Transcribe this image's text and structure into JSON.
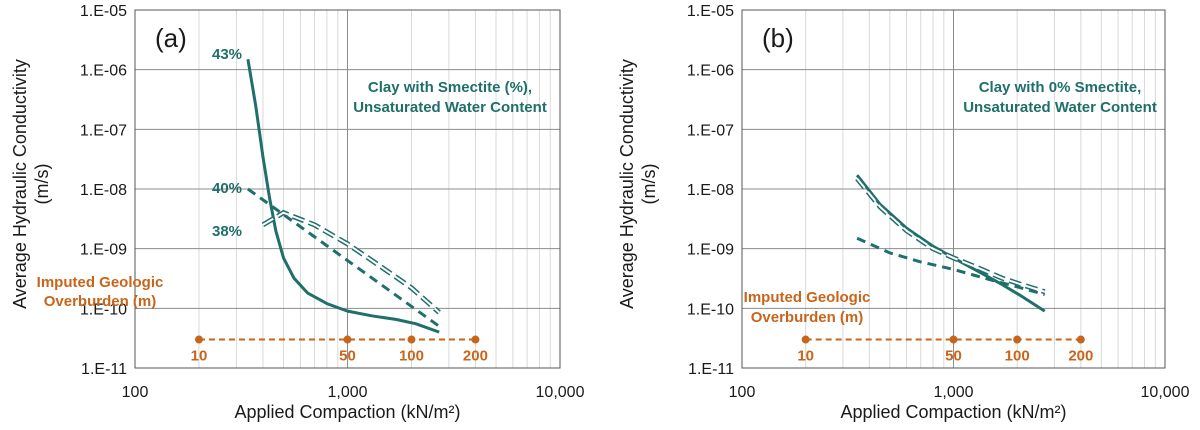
{
  "colors": {
    "teal": "#1f6f6b",
    "orange": "#c8651b",
    "grid_major": "#8c8c8c",
    "grid_minor": "#d9d9d9"
  },
  "chart_data": [
    {
      "type": "line",
      "panel_label": "(a)",
      "xlabel": "Applied Compaction (kN/m²)",
      "ylabel_line1": "Average Hydraulic Conductivity",
      "ylabel_line2": "(m/s)",
      "xscale": "log",
      "yscale": "log",
      "xlim": [
        100,
        10000
      ],
      "ylim": [
        1e-11,
        1e-05
      ],
      "x_ticks": [
        100,
        1000,
        10000
      ],
      "x_tick_labels": [
        "100",
        "1,000",
        "10,000"
      ],
      "y_ticks": [
        1e-11,
        1e-10,
        1e-09,
        1e-08,
        1e-07,
        1e-06,
        1e-05
      ],
      "y_tick_labels": [
        "1.E-11",
        "1.E-10",
        "1.E-09",
        "1.E-08",
        "1.E-07",
        "1.E-06",
        "1.E-05"
      ],
      "annotation_line1": "Clay with Smectite (%),",
      "annotation_line2": "Unsaturated Water Content",
      "series": [
        {
          "name": "43%",
          "style": "solid",
          "x": [
            340,
            370,
            400,
            430,
            460,
            500,
            560,
            650,
            800,
            1000,
            1300,
            1700,
            2100,
            2700
          ],
          "y": [
            1.5e-06,
            2.5e-07,
            3.5e-08,
            7e-09,
            2e-09,
            7e-10,
            3.2e-10,
            1.8e-10,
            1.2e-10,
            9e-11,
            7.5e-11,
            6.5e-11,
            5.5e-11,
            4e-11
          ]
        },
        {
          "name": "40%",
          "style": "dashed",
          "x": [
            340,
            2700
          ],
          "y": [
            1e-08,
            5e-11
          ]
        },
        {
          "name": "38%",
          "style": "double-dashed",
          "x": [
            400,
            500,
            700,
            1000,
            1500,
            2000,
            2700
          ],
          "y": [
            2.5e-09,
            4e-09,
            2.5e-09,
            1.2e-09,
            4.5e-10,
            2.2e-10,
            8.5e-11
          ]
        }
      ],
      "overburden": {
        "label_line1": "Imputed Geologic",
        "label_line2": "Overburden (m)",
        "y": 3e-11,
        "points": [
          {
            "label": "10",
            "x": 200
          },
          {
            "label": "50",
            "x": 1000
          },
          {
            "label": "100",
            "x": 2000
          },
          {
            "label": "200",
            "x": 4000
          }
        ]
      }
    },
    {
      "type": "line",
      "panel_label": "(b)",
      "xlabel": "Applied Compaction (kN/m²)",
      "ylabel_line1": "Average Hydraulic Conductivity",
      "ylabel_line2": "(m/s)",
      "xscale": "log",
      "yscale": "log",
      "xlim": [
        100,
        10000
      ],
      "ylim": [
        1e-11,
        1e-05
      ],
      "x_ticks": [
        100,
        1000,
        10000
      ],
      "x_tick_labels": [
        "100",
        "1,000",
        "10,000"
      ],
      "y_ticks": [
        1e-11,
        1e-10,
        1e-09,
        1e-08,
        1e-07,
        1e-06,
        1e-05
      ],
      "y_tick_labels": [
        "1.E-11",
        "1.E-10",
        "1.E-09",
        "1.E-08",
        "1.E-07",
        "1.E-06",
        "1.E-05"
      ],
      "annotation_line1": "Clay with 0% Smectite,",
      "annotation_line2": "Unsaturated Water Content",
      "series": [
        {
          "name": "solid",
          "style": "solid",
          "x": [
            350,
            450,
            600,
            800,
            1000,
            1300,
            1700,
            2100,
            2700
          ],
          "y": [
            1.7e-08,
            5.5e-09,
            2.2e-09,
            1.1e-09,
            7e-10,
            4.2e-10,
            2.5e-10,
            1.6e-10,
            9e-11
          ]
        },
        {
          "name": "dashed",
          "style": "dashed",
          "x": [
            350,
            500,
            700,
            1000,
            1500,
            2000,
            2700
          ],
          "y": [
            1.5e-09,
            8.5e-10,
            6e-10,
            4.5e-10,
            3e-10,
            2.3e-10,
            1.7e-10
          ]
        },
        {
          "name": "double-dashed",
          "style": "double-dashed",
          "x": [
            350,
            450,
            600,
            800,
            1000,
            1300,
            1700,
            2100,
            2700
          ],
          "y": [
            1.5e-08,
            5e-09,
            2e-09,
            1e-09,
            7e-10,
            4.8e-10,
            3.2e-10,
            2.5e-10,
            1.9e-10
          ]
        }
      ],
      "overburden": {
        "label_line1": "Imputed Geologic",
        "label_line2": "Overburden (m)",
        "y": 3e-11,
        "points": [
          {
            "label": "10",
            "x": 200
          },
          {
            "label": "50",
            "x": 1000
          },
          {
            "label": "100",
            "x": 2000
          },
          {
            "label": "200",
            "x": 4000
          }
        ]
      }
    }
  ]
}
